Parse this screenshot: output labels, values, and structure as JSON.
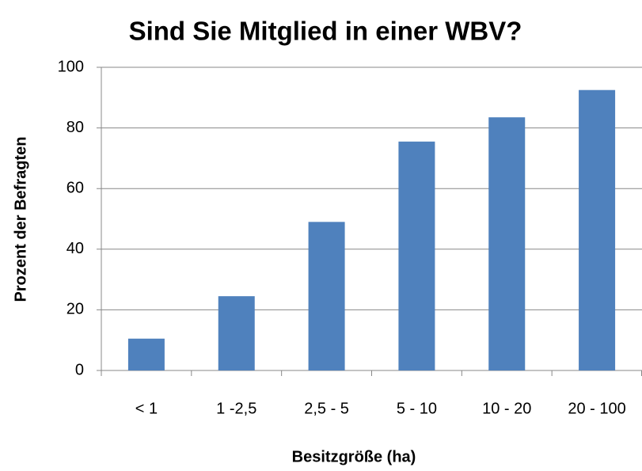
{
  "chart_data": {
    "type": "bar",
    "title": "Sind Sie Mitglied in einer WBV?",
    "x_label": "Besitzgröße (ha)",
    "y_label": "Prozent der Befragten",
    "categories": [
      "< 1",
      "1 -2,5",
      "2,5 - 5",
      "5 - 10",
      "10 - 20",
      "20 - 100"
    ],
    "values": [
      10.5,
      24.5,
      49,
      75.5,
      83.5,
      92.5
    ],
    "color": "#4f81bd",
    "ylim": [
      0,
      100
    ],
    "yticks": [
      0,
      20,
      40,
      60,
      80,
      100
    ],
    "grid": true
  }
}
